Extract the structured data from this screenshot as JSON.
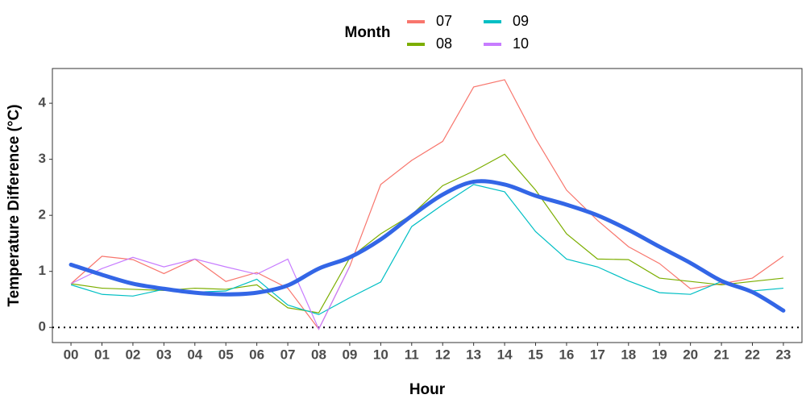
{
  "chart_data": {
    "type": "line",
    "x_label": "Hour",
    "y_label": "Temperature Difference (°C)",
    "legend_title": "Month",
    "legend_position": "top",
    "categories": [
      "00",
      "01",
      "02",
      "03",
      "04",
      "05",
      "06",
      "07",
      "08",
      "09",
      "10",
      "11",
      "12",
      "13",
      "14",
      "15",
      "16",
      "17",
      "18",
      "19",
      "20",
      "21",
      "22",
      "23"
    ],
    "series": [
      {
        "name": "07",
        "color": "#f8766d",
        "values": [
          0.78,
          1.27,
          1.21,
          0.96,
          1.22,
          0.82,
          0.98,
          0.7,
          -0.03,
          1.09,
          2.55,
          2.98,
          3.32,
          4.29,
          4.42,
          3.37,
          2.45,
          1.91,
          1.44,
          1.14,
          0.69,
          0.78,
          0.88,
          1.27
        ]
      },
      {
        "name": "08",
        "color": "#7cae00",
        "values": [
          0.78,
          0.7,
          0.68,
          0.66,
          0.7,
          0.68,
          0.76,
          0.35,
          0.26,
          1.24,
          1.67,
          2.01,
          2.53,
          2.79,
          3.09,
          2.45,
          1.67,
          1.22,
          1.21,
          0.88,
          0.82,
          0.76,
          0.82,
          0.88
        ]
      },
      {
        "name": "09",
        "color": "#00bfc4",
        "values": [
          0.76,
          0.59,
          0.56,
          0.68,
          0.63,
          0.65,
          0.86,
          0.4,
          0.23,
          0.53,
          0.81,
          1.8,
          2.19,
          2.55,
          2.42,
          1.71,
          1.22,
          1.08,
          0.83,
          0.62,
          0.59,
          0.82,
          0.65,
          0.7
        ]
      },
      {
        "name": "10",
        "color": "#c77cff",
        "values": [
          0.78,
          1.05,
          1.25,
          1.08,
          1.22,
          1.08,
          0.95,
          1.22,
          -0.03,
          1.09,
          null,
          null,
          null,
          null,
          null,
          null,
          null,
          null,
          null,
          null,
          null,
          null,
          null,
          null
        ]
      }
    ],
    "trend": {
      "color": "#3366e6",
      "values": [
        1.12,
        0.94,
        0.78,
        0.69,
        0.62,
        0.59,
        0.62,
        0.75,
        1.05,
        1.25,
        1.57,
        1.99,
        2.37,
        2.6,
        2.55,
        2.35,
        2.19,
        2.0,
        1.74,
        1.44,
        1.15,
        0.83,
        0.63,
        0.3
      ]
    },
    "reference_line": 0,
    "ylim": [
      -0.27,
      4.62
    ],
    "yticks": [
      0,
      1,
      2,
      3,
      4
    ],
    "grid": false
  }
}
